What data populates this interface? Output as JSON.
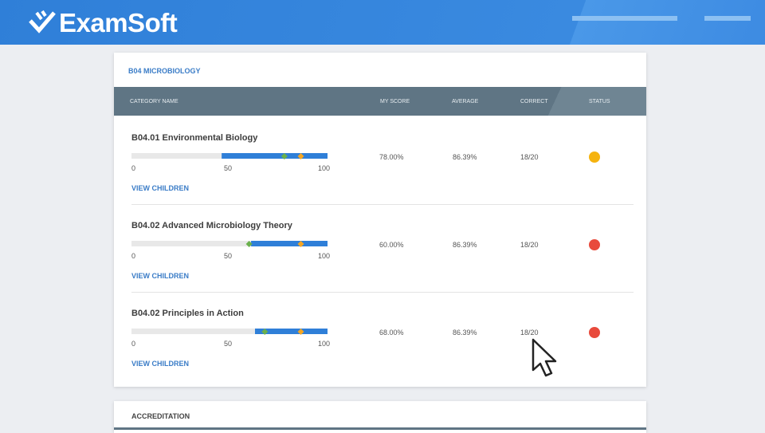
{
  "header": {
    "logo": "ExamSoft"
  },
  "card": {
    "title": "B04 MICROBIOLOGY",
    "columns": [
      "CATEGORY NAME",
      "MY SCORE",
      "AVERAGE",
      "CORRECT",
      "STATUS"
    ],
    "scale": {
      "xlim": [
        0,
        100
      ],
      "xticks": [
        0,
        50,
        100
      ]
    },
    "rows": [
      {
        "name": "B04.01 Environmental Biology",
        "band_from": 46,
        "score": {
          "value": 78,
          "label": "78.00%"
        },
        "average": {
          "value": 86.39,
          "label": "86.39%"
        },
        "correct": "18/20",
        "status_color": "#f5b30f",
        "link": "VIEW CHILDREN"
      },
      {
        "name": "B04.02 Advanced Microbiology Theory",
        "band_from": 61,
        "score": {
          "value": 60,
          "label": "60.00%"
        },
        "average": {
          "value": 86.39,
          "label": "86.39%"
        },
        "correct": "18/20",
        "status_color": "#e84a3c",
        "link": "VIEW CHILDREN"
      },
      {
        "name": "B04.02 Principles in Action",
        "band_from": 63,
        "score": {
          "value": 68,
          "label": "68.00%"
        },
        "average": {
          "value": 86.39,
          "label": "86.39%"
        },
        "correct": "18/20",
        "status_color": "#e84a3c",
        "link": "VIEW CHILDREN"
      }
    ]
  },
  "card2": {
    "title": "ACCREDITATION"
  }
}
